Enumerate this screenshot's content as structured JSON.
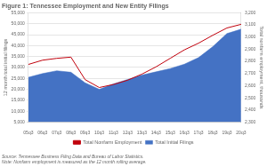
{
  "chart_data": {
    "type": "line",
    "title": "Figure 1: Tennessee Employment and New Entity Filings",
    "categories": [
      "05q3",
      "06q3",
      "07q3",
      "08q3",
      "09q3",
      "10q3",
      "11q3",
      "12q3",
      "13q3",
      "14q3",
      "15q3",
      "16q3",
      "17q3",
      "18q3",
      "19q3",
      "20q3"
    ],
    "series": [
      {
        "name": "Total Initial Filings",
        "type": "area",
        "color": "#4472C4",
        "values": [
          25500,
          27200,
          28500,
          27800,
          23000,
          20000,
          22500,
          24500,
          26500,
          28000,
          29500,
          31500,
          34500,
          39500,
          45500,
          47500
        ]
      },
      {
        "name": "Total Nonfarm Employment",
        "type": "line",
        "color": "#C0000C",
        "axis": "y2",
        "values": [
          2775,
          2810,
          2825,
          2835,
          2650,
          2585,
          2610,
          2645,
          2695,
          2755,
          2825,
          2895,
          2950,
          3015,
          3075,
          3105
        ]
      }
    ],
    "ylim": [
      5000,
      55000
    ],
    "yticks": [
      {
        "value": 5000,
        "label": "5,000"
      },
      {
        "value": 10000,
        "label": "10,000"
      },
      {
        "value": 15000,
        "label": "15,000"
      },
      {
        "value": 20000,
        "label": "20,000"
      },
      {
        "value": 25000,
        "label": "25,000"
      },
      {
        "value": 30000,
        "label": "30,000"
      },
      {
        "value": 35000,
        "label": "35,000"
      },
      {
        "value": 40000,
        "label": "40,000"
      },
      {
        "value": 45000,
        "label": "45,000"
      },
      {
        "value": 50000,
        "label": "50,000"
      },
      {
        "value": 55000,
        "label": "55,000"
      }
    ],
    "y2lim": [
      2300,
      3200
    ],
    "y2ticks": [
      {
        "value": 2300,
        "label": "2,300"
      },
      {
        "value": 2400,
        "label": "2,400"
      },
      {
        "value": 2500,
        "label": "2,500"
      },
      {
        "value": 2600,
        "label": "2,600"
      },
      {
        "value": 2700,
        "label": "2,700"
      },
      {
        "value": 2800,
        "label": "2,800"
      },
      {
        "value": 2900,
        "label": "2,900"
      },
      {
        "value": 3000,
        "label": "3,000"
      },
      {
        "value": 3100,
        "label": "3,100"
      },
      {
        "value": 3200,
        "label": "3,200"
      }
    ],
    "ylabel": "12 month total initial filings",
    "y2label": "Total nonfarm employment, thousands",
    "grid": true,
    "legend": "bottom",
    "annotations": [
      "Source: Tennessee Business Filing Data and Bureau of Labor Statistics.",
      "Note: Nonfarm employment is measured as the 12 month rolling average."
    ]
  }
}
